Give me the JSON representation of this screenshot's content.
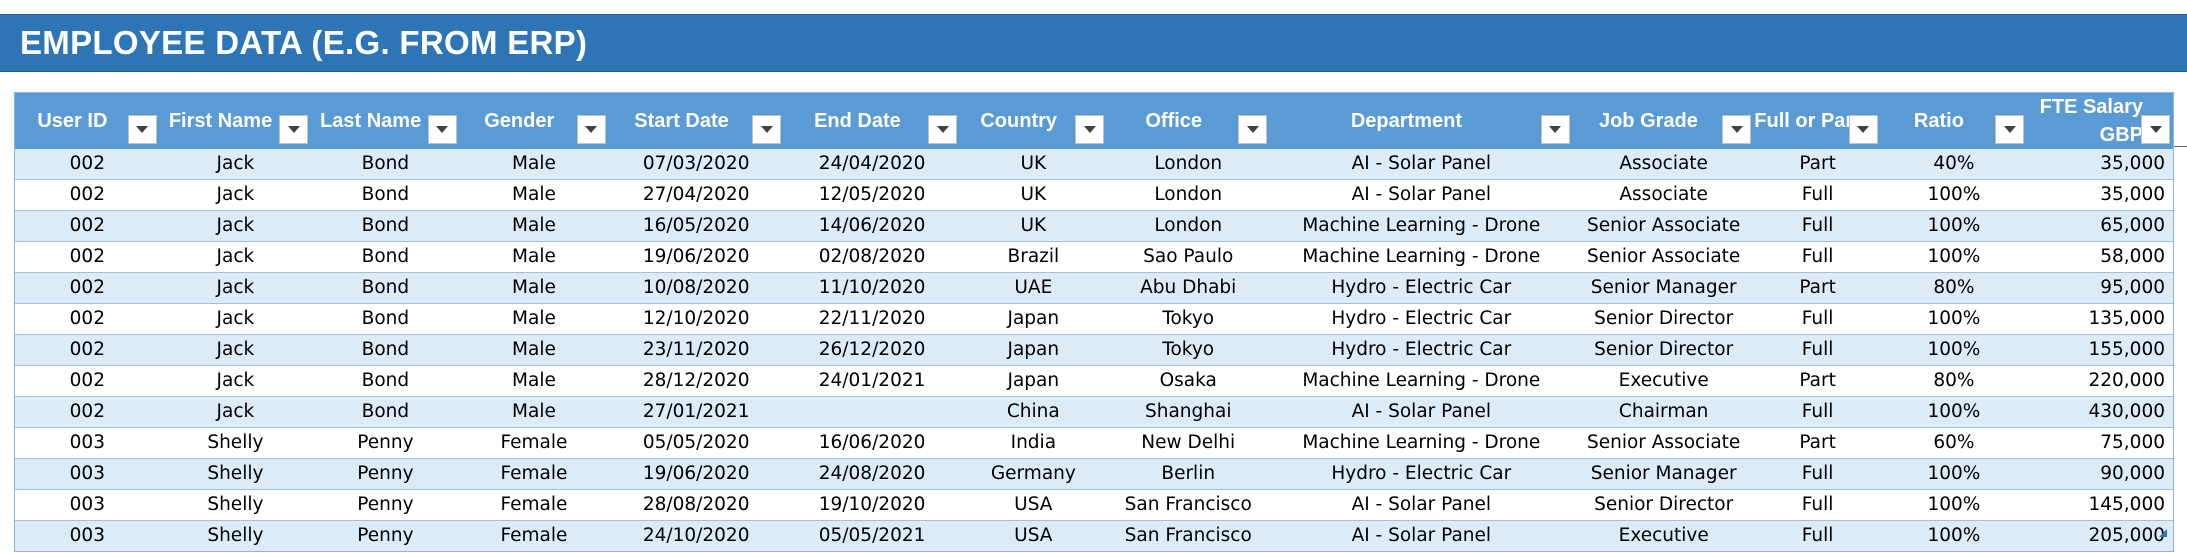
{
  "title": "EMPLOYEE DATA (E.G. FROM ERP)",
  "colors": {
    "title_bg": "#2e75b6",
    "header_bg": "#5b9bd5",
    "band": "#ddebf7"
  },
  "columns": [
    {
      "key": "user_id",
      "label": "User ID",
      "align": "c",
      "w": 148
    },
    {
      "key": "first_name",
      "label": "First Name",
      "align": "c",
      "w": 155
    },
    {
      "key": "last_name",
      "label": "Last Name",
      "align": "c",
      "w": 152
    },
    {
      "key": "gender",
      "label": "Gender",
      "align": "c",
      "w": 152
    },
    {
      "key": "start_date",
      "label": "Start Date",
      "align": "c",
      "w": 180
    },
    {
      "key": "end_date",
      "label": "End Date",
      "align": "c",
      "w": 180
    },
    {
      "key": "country",
      "label": "Country",
      "align": "c",
      "w": 150
    },
    {
      "key": "office",
      "label": "Office",
      "align": "c",
      "w": 167
    },
    {
      "key": "department",
      "label": "Department",
      "align": "c",
      "w": 310
    },
    {
      "key": "job_grade",
      "label": "Job Grade",
      "align": "c",
      "w": 186
    },
    {
      "key": "full_or_part",
      "label": "Full or Part",
      "align": "c",
      "w": 129
    },
    {
      "key": "ratio",
      "label": "Ratio",
      "align": "c",
      "w": 150
    },
    {
      "key": "fte_salary_gbp",
      "label": "FTE Salary GBP",
      "align": "r",
      "w": 149
    }
  ],
  "rows": [
    [
      "002",
      "Jack",
      "Bond",
      "Male",
      "07/03/2020",
      "24/04/2020",
      "UK",
      "London",
      "AI - Solar Panel",
      "Associate",
      "Part",
      "40%",
      "35,000"
    ],
    [
      "002",
      "Jack",
      "Bond",
      "Male",
      "27/04/2020",
      "12/05/2020",
      "UK",
      "London",
      "AI - Solar Panel",
      "Associate",
      "Full",
      "100%",
      "35,000"
    ],
    [
      "002",
      "Jack",
      "Bond",
      "Male",
      "16/05/2020",
      "14/06/2020",
      "UK",
      "London",
      "Machine Learning - Drone",
      "Senior Associate",
      "Full",
      "100%",
      "65,000"
    ],
    [
      "002",
      "Jack",
      "Bond",
      "Male",
      "19/06/2020",
      "02/08/2020",
      "Brazil",
      "Sao Paulo",
      "Machine Learning - Drone",
      "Senior Associate",
      "Full",
      "100%",
      "58,000"
    ],
    [
      "002",
      "Jack",
      "Bond",
      "Male",
      "10/08/2020",
      "11/10/2020",
      "UAE",
      "Abu Dhabi",
      "Hydro - Electric Car",
      "Senior Manager",
      "Part",
      "80%",
      "95,000"
    ],
    [
      "002",
      "Jack",
      "Bond",
      "Male",
      "12/10/2020",
      "22/11/2020",
      "Japan",
      "Tokyo",
      "Hydro - Electric Car",
      "Senior Director",
      "Full",
      "100%",
      "135,000"
    ],
    [
      "002",
      "Jack",
      "Bond",
      "Male",
      "23/11/2020",
      "26/12/2020",
      "Japan",
      "Tokyo",
      "Hydro - Electric Car",
      "Senior Director",
      "Full",
      "100%",
      "155,000"
    ],
    [
      "002",
      "Jack",
      "Bond",
      "Male",
      "28/12/2020",
      "24/01/2021",
      "Japan",
      "Osaka",
      "Machine Learning - Drone",
      "Executive",
      "Part",
      "80%",
      "220,000"
    ],
    [
      "002",
      "Jack",
      "Bond",
      "Male",
      "27/01/2021",
      "",
      "China",
      "Shanghai",
      "AI - Solar Panel",
      "Chairman",
      "Full",
      "100%",
      "430,000"
    ],
    [
      "003",
      "Shelly",
      "Penny",
      "Female",
      "05/05/2020",
      "16/06/2020",
      "India",
      "New Delhi",
      "Machine Learning - Drone",
      "Senior Associate",
      "Part",
      "60%",
      "75,000"
    ],
    [
      "003",
      "Shelly",
      "Penny",
      "Female",
      "19/06/2020",
      "24/08/2020",
      "Germany",
      "Berlin",
      "Hydro - Electric Car",
      "Senior Manager",
      "Full",
      "100%",
      "90,000"
    ],
    [
      "003",
      "Shelly",
      "Penny",
      "Female",
      "28/08/2020",
      "19/10/2020",
      "USA",
      "San Francisco",
      "AI - Solar Panel",
      "Senior Director",
      "Full",
      "100%",
      "145,000"
    ],
    [
      "003",
      "Shelly",
      "Penny",
      "Female",
      "24/10/2020",
      "05/05/2021",
      "USA",
      "San Francisco",
      "AI - Solar Panel",
      "Executive",
      "Full",
      "100%",
      "205,000"
    ]
  ]
}
